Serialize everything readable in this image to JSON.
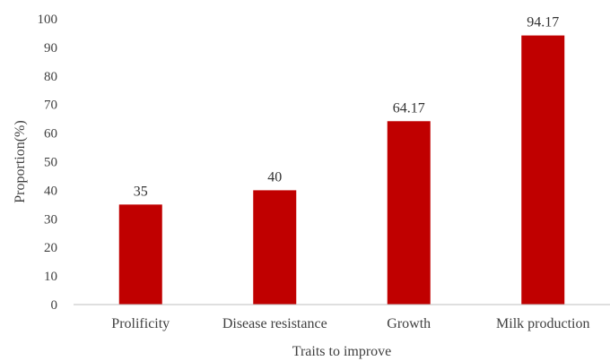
{
  "chart_data": {
    "type": "bar",
    "categories": [
      "Prolificity",
      "Disease resistance",
      "Growth",
      "Milk production"
    ],
    "values": [
      35,
      40,
      64.17,
      94.17
    ],
    "data_labels": [
      "35",
      "40",
      "64.17",
      "94.17"
    ],
    "xlabel": "Traits to improve",
    "ylabel": "Proportion(%)",
    "ylim": [
      0,
      100
    ],
    "yticks": [
      0,
      10,
      20,
      30,
      40,
      50,
      60,
      70,
      80,
      90,
      100
    ],
    "grid": false,
    "legend": "none",
    "bar_color": "#c00000",
    "axis_color": "#bfbfbf"
  }
}
